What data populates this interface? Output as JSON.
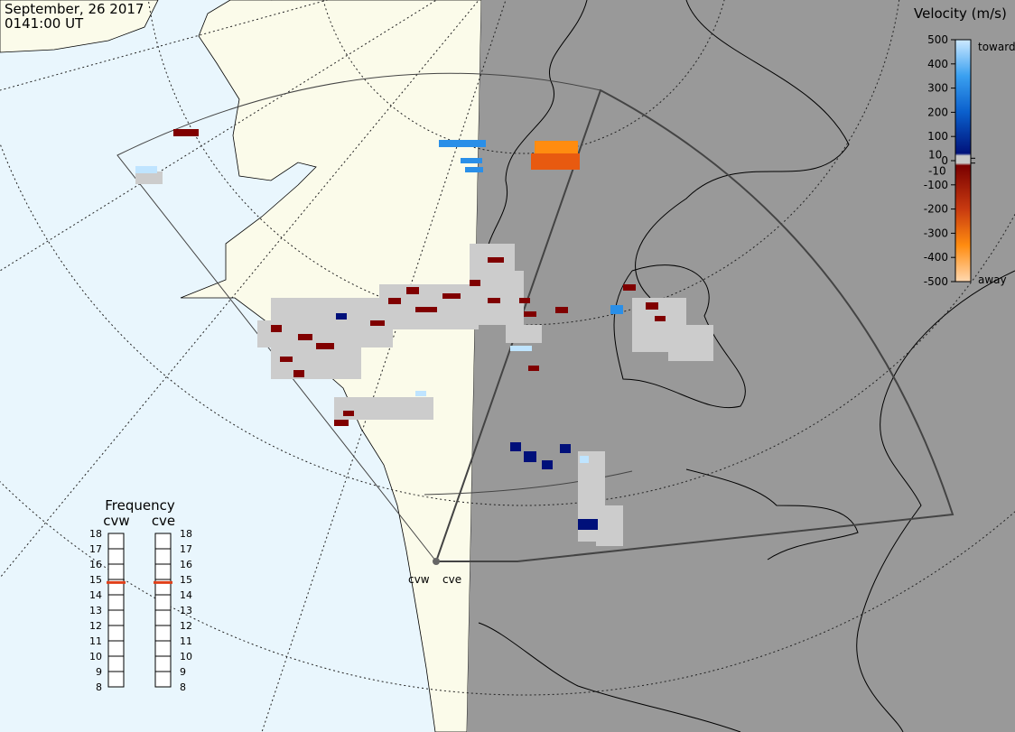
{
  "header": {
    "date": "September, 26 2017",
    "time": "0141:00 UT"
  },
  "velocity_scale": {
    "title": "Velocity (m/s)",
    "lim": [
      -500,
      500
    ],
    "ticks": [
      500,
      400,
      300,
      200,
      100,
      0,
      -100,
      -200,
      -300,
      -400,
      -500
    ],
    "inner_ticks": [
      10,
      -10
    ],
    "toward": "toward",
    "away": "away"
  },
  "frequency": {
    "title": "Frequency",
    "lim": [
      8,
      18
    ],
    "ticks": [
      18,
      17,
      16,
      15,
      14,
      13,
      12,
      11,
      10,
      9,
      8
    ],
    "radars": [
      {
        "name": "cvw",
        "value": 14.8
      },
      {
        "name": "cve",
        "value": 14.8
      }
    ]
  }
}
